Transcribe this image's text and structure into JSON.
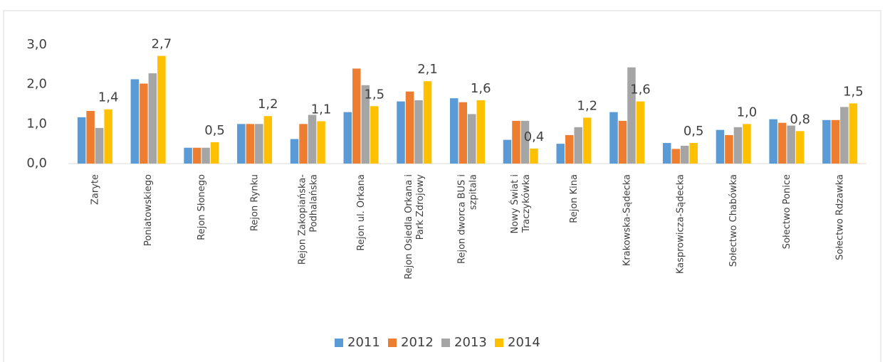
{
  "chart_data": {
    "type": "bar",
    "categories": [
      "Zaryte",
      "Poniatowskiego",
      "Rejon Słonego",
      "Rejon Rynku",
      "Rejon Zakopiańska-\nPodhalańska",
      "Rejon ul. Orkana",
      "Rejon Osiedla Orkana i\nPark Zdrojowy",
      "Rejon dworca BUS i\nszpitala",
      "Nowy Świat i\nTraczykówka",
      "Rejon Kina",
      "Krakowska-Sądecka",
      "Kasprowicza-Sądecka",
      "Sołectwo Chabówka",
      "Sołectwo Ponice",
      "Sołectwo Rdzawka"
    ],
    "series": [
      {
        "name": "2011",
        "color": "#5b9bd5",
        "values": [
          1.17,
          2.13,
          0.4,
          1.0,
          0.62,
          1.3,
          1.57,
          1.65,
          0.6,
          0.5,
          1.3,
          0.52,
          0.85,
          1.12,
          1.1
        ]
      },
      {
        "name": "2012",
        "color": "#ed7d31",
        "values": [
          1.33,
          2.02,
          0.4,
          1.0,
          1.0,
          2.4,
          1.82,
          1.55,
          1.08,
          0.72,
          1.08,
          0.37,
          0.72,
          1.03,
          1.1
        ]
      },
      {
        "name": "2013",
        "color": "#a5a5a5",
        "values": [
          0.9,
          2.28,
          0.4,
          1.0,
          1.23,
          1.98,
          1.6,
          1.25,
          1.08,
          0.92,
          2.43,
          0.45,
          0.92,
          0.96,
          1.43
        ]
      },
      {
        "name": "2014",
        "color": "#ffc000",
        "values": [
          1.37,
          2.72,
          0.54,
          1.2,
          1.07,
          1.45,
          2.08,
          1.6,
          0.38,
          1.16,
          1.57,
          0.52,
          1.0,
          0.82,
          1.52
        ],
        "value_labels": [
          "1,4",
          "2,7",
          "0,5",
          "1,2",
          "1,1",
          "1,5",
          "2,1",
          "1,6",
          "0,4",
          "1,2",
          "1,6",
          "0,5",
          "1,0",
          "0,8",
          "1,5"
        ]
      }
    ],
    "ylim": [
      0,
      3
    ],
    "yticks": [
      {
        "value": 0,
        "label": "0,0"
      },
      {
        "value": 1,
        "label": "1,0"
      },
      {
        "value": 2,
        "label": "2,0"
      },
      {
        "value": 3,
        "label": "3,0"
      }
    ],
    "grid": false,
    "legend": "bottom"
  }
}
